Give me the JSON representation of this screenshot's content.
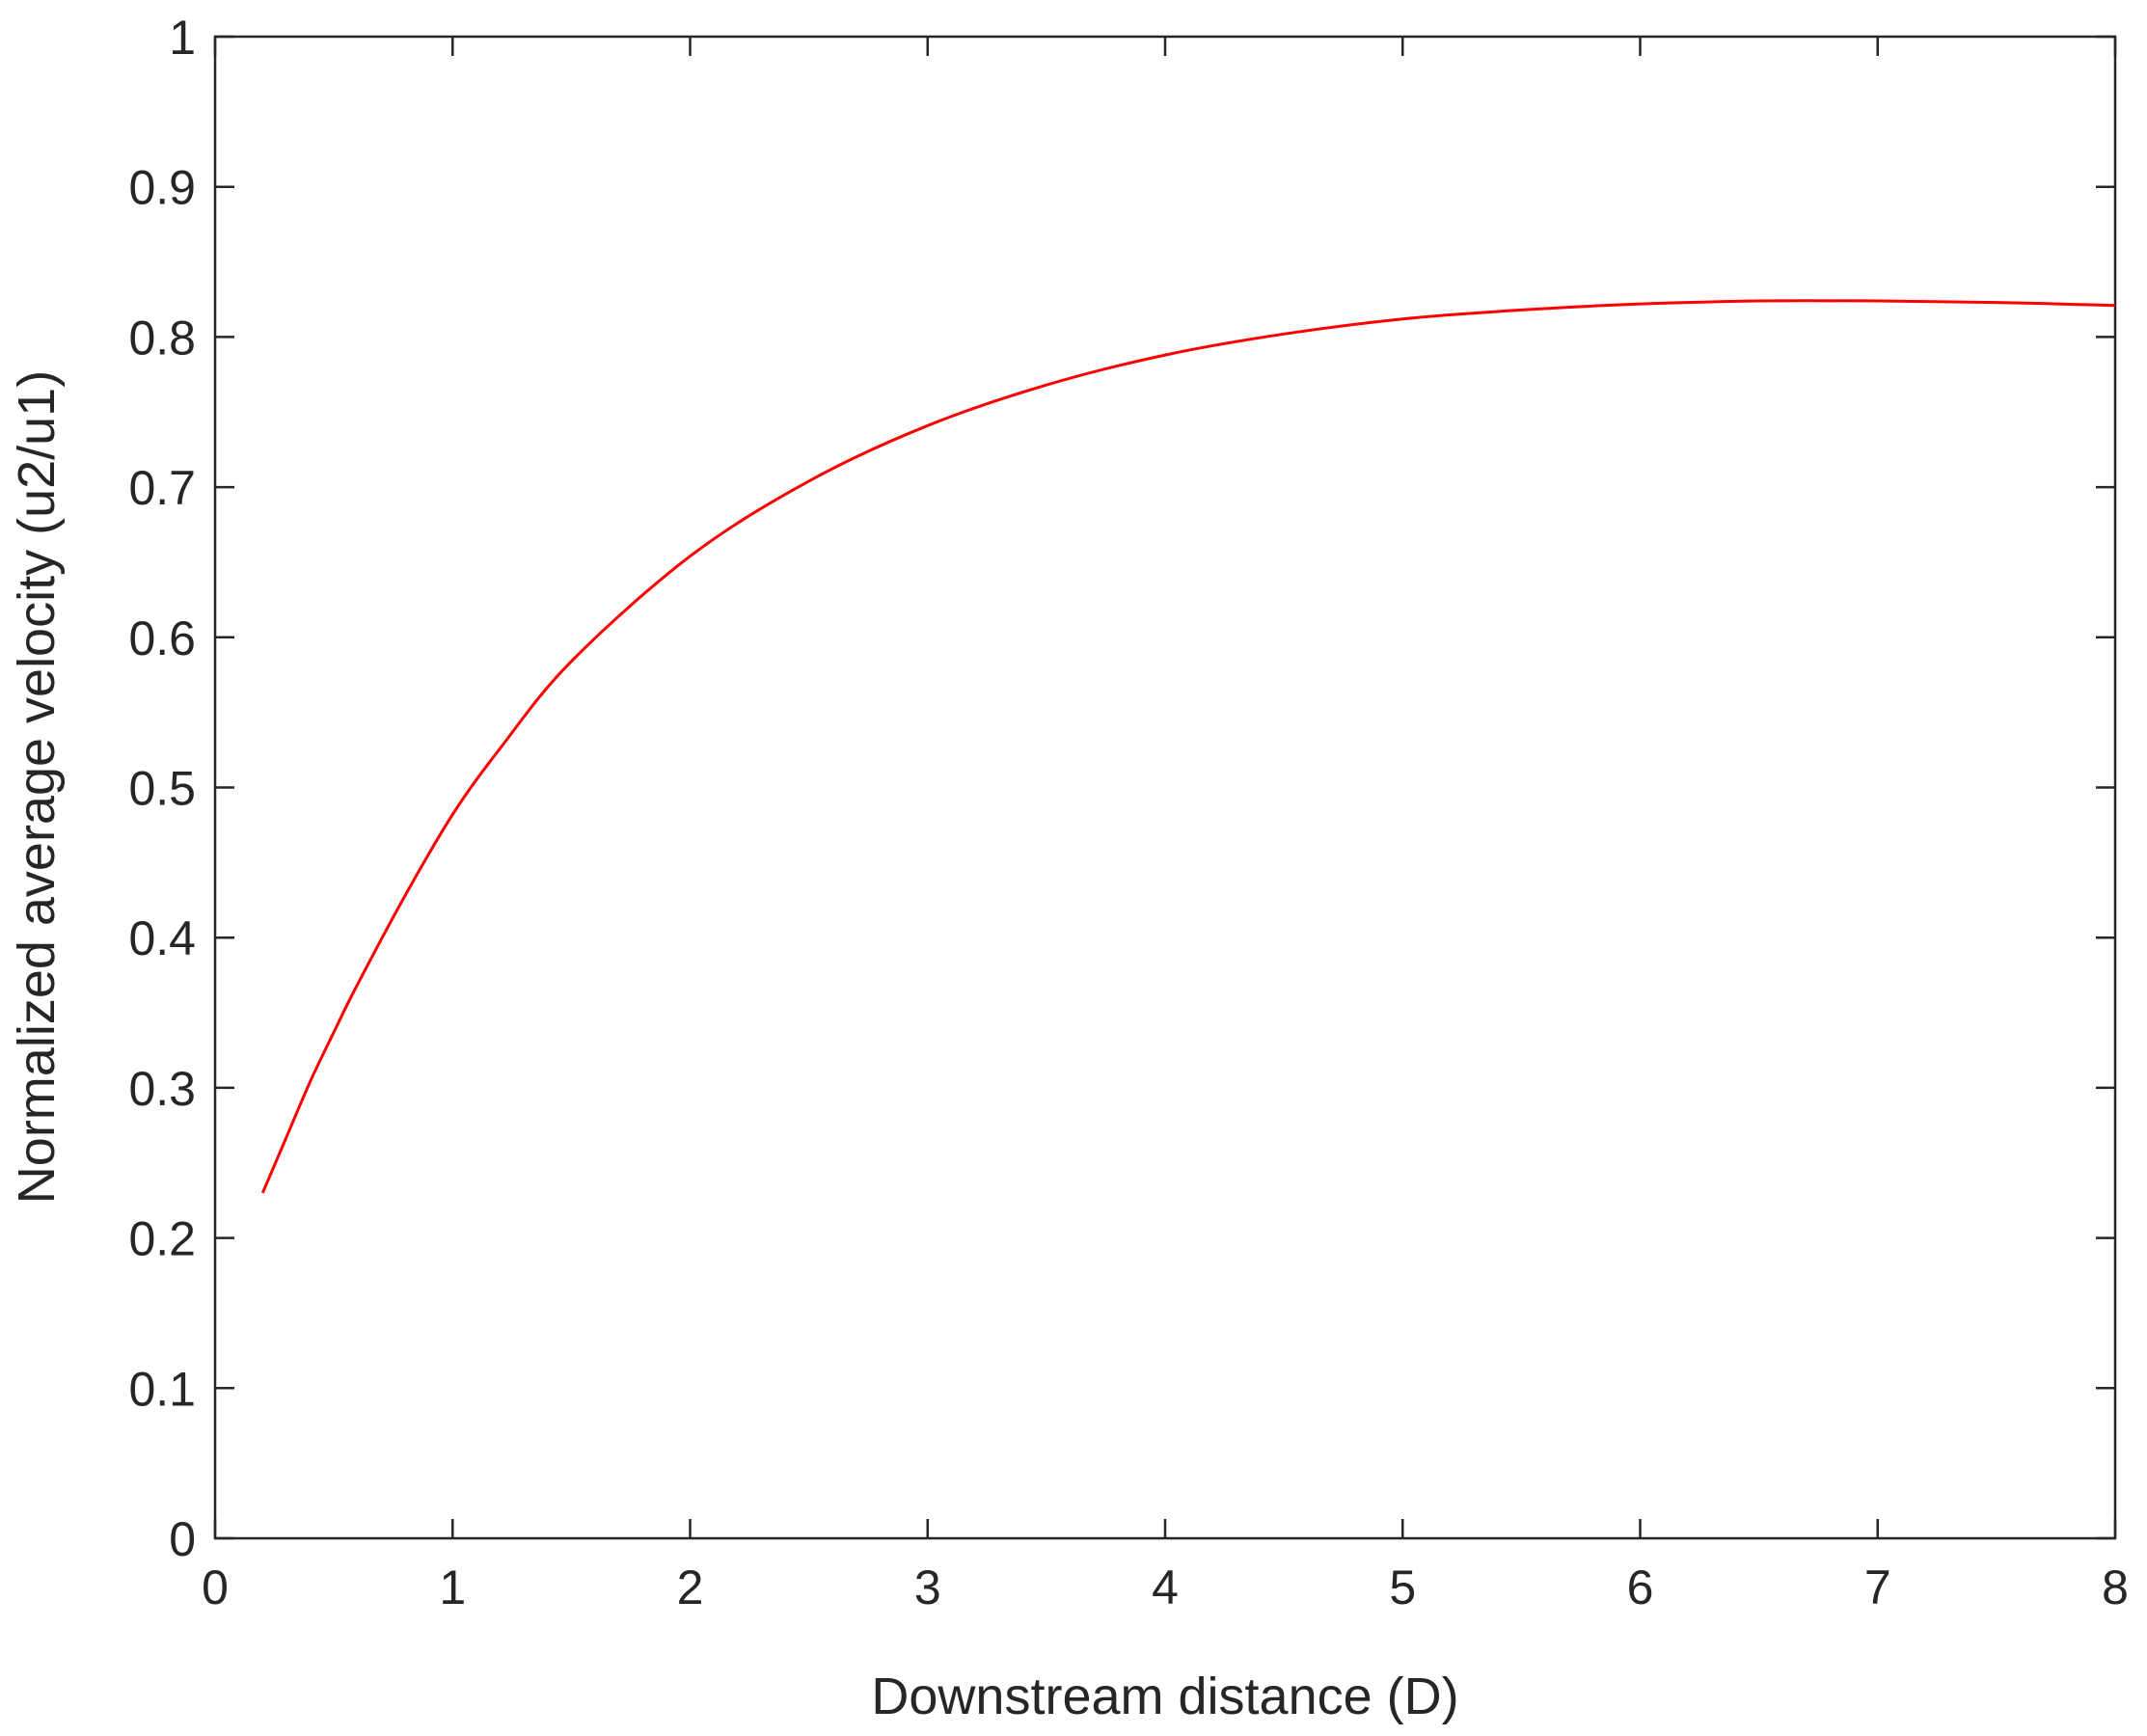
{
  "chart_data": {
    "type": "line",
    "title": "",
    "xlabel": "Downstream distance (D)",
    "ylabel": "Normalized average velocity (u2/u1)",
    "xlim": [
      0,
      8
    ],
    "ylim": [
      0,
      1
    ],
    "xticks": [
      "0",
      "1",
      "2",
      "3",
      "4",
      "5",
      "6",
      "7",
      "8"
    ],
    "yticks": [
      "0",
      "0.1",
      "0.2",
      "0.3",
      "0.4",
      "0.5",
      "0.6",
      "0.7",
      "0.8",
      "0.9",
      "1"
    ],
    "grid": false,
    "legend": "none",
    "series": [
      {
        "color": "#ff0000",
        "x": [
          0.2,
          0.3,
          0.4,
          0.5,
          0.6,
          0.8,
          1.0,
          1.2,
          1.5,
          2.0,
          2.5,
          3.0,
          3.5,
          4.0,
          4.5,
          5.0,
          5.5,
          6.0,
          6.5,
          7.0,
          7.5,
          8.0
        ],
        "y": [
          0.23,
          0.267,
          0.304,
          0.337,
          0.369,
          0.428,
          0.482,
          0.526,
          0.584,
          0.654,
          0.704,
          0.741,
          0.768,
          0.788,
          0.802,
          0.812,
          0.818,
          0.822,
          0.824,
          0.824,
          0.823,
          0.821
        ]
      }
    ]
  }
}
